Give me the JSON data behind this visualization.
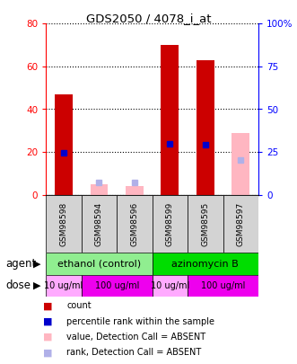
{
  "title": "GDS2050 / 4078_i_at",
  "samples": [
    "GSM98598",
    "GSM98594",
    "GSM98596",
    "GSM98599",
    "GSM98595",
    "GSM98597"
  ],
  "red_bar_values": [
    47,
    0,
    0,
    70,
    63,
    0
  ],
  "blue_marker_values": [
    24.5,
    0,
    0,
    30,
    29,
    0
  ],
  "pink_bar_values": [
    0,
    5,
    4,
    0,
    0,
    29
  ],
  "lavender_marker_values": [
    0,
    7,
    7,
    0,
    0,
    20.5
  ],
  "ylim_left": [
    0,
    80
  ],
  "ylim_right": [
    0,
    100
  ],
  "yticks_left": [
    0,
    20,
    40,
    60,
    80
  ],
  "yticks_right": [
    0,
    25,
    50,
    75,
    100
  ],
  "ytick_labels_left": [
    "0",
    "20",
    "40",
    "60",
    "80"
  ],
  "ytick_labels_right": [
    "0",
    "25",
    "50",
    "75",
    "100%"
  ],
  "bar_color_red": "#cc0000",
  "bar_color_pink": "#ffb6c1",
  "marker_color_blue": "#0000cc",
  "marker_color_lavender": "#b0b0e8",
  "plot_bg": "#ffffff",
  "sample_bg": "#d3d3d3",
  "agent_groups": [
    {
      "text": "ethanol (control)",
      "start": 0,
      "end": 2,
      "color": "#90ee90"
    },
    {
      "text": "azinomycin B",
      "start": 3,
      "end": 5,
      "color": "#00dd00"
    }
  ],
  "dose_groups": [
    {
      "text": "10 ug/ml",
      "start": 0,
      "end": 0,
      "color": "#ffaaff"
    },
    {
      "text": "100 ug/ml",
      "start": 1,
      "end": 2,
      "color": "#ee00ee"
    },
    {
      "text": "10 ug/ml",
      "start": 3,
      "end": 3,
      "color": "#ffaaff"
    },
    {
      "text": "100 ug/ml",
      "start": 4,
      "end": 5,
      "color": "#ee00ee"
    }
  ],
  "legend_items": [
    {
      "color": "#cc0000",
      "label": "count"
    },
    {
      "color": "#0000cc",
      "label": "percentile rank within the sample"
    },
    {
      "color": "#ffb6c1",
      "label": "value, Detection Call = ABSENT"
    },
    {
      "color": "#b0b0e8",
      "label": "rank, Detection Call = ABSENT"
    }
  ],
  "agent_label": "agent",
  "dose_label": "dose",
  "arrow_char": "▶"
}
